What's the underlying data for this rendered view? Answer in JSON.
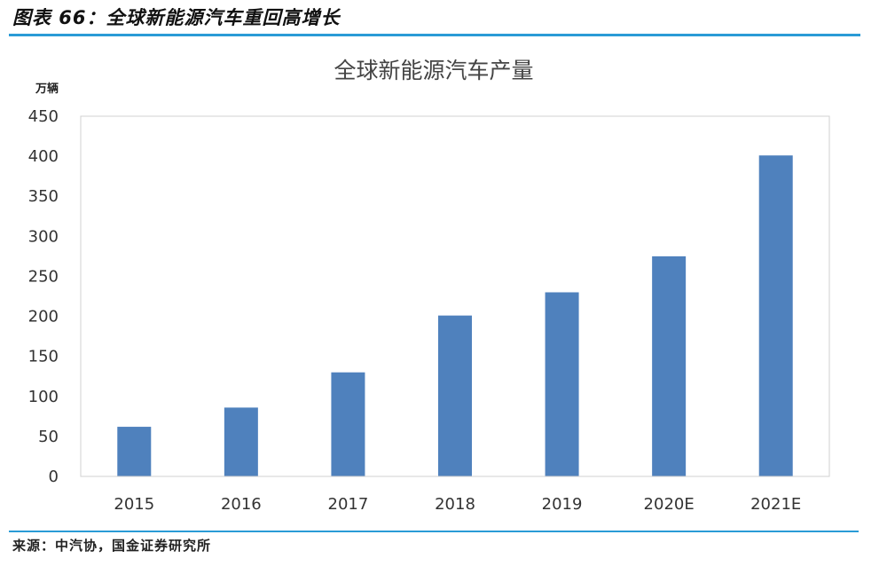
{
  "header": {
    "figure_title": "图表 66：全球新能源汽车重回高增长"
  },
  "footer": {
    "source": "来源：中汽协，国金证券研究所"
  },
  "chart_data": {
    "type": "bar",
    "title": "全球新能源汽车产量",
    "unit_label": "万辆",
    "xlabel": "",
    "ylabel": "万辆",
    "categories": [
      "2015",
      "2016",
      "2017",
      "2018",
      "2019",
      "2020E",
      "2021E"
    ],
    "values": [
      62,
      86,
      130,
      201,
      230,
      275,
      401
    ],
    "ylim": [
      0,
      450
    ],
    "yticks": [
      0,
      50,
      100,
      150,
      200,
      250,
      300,
      350,
      400,
      450
    ],
    "grid": false,
    "legend": "none",
    "bar_color": "#4f81bd"
  }
}
